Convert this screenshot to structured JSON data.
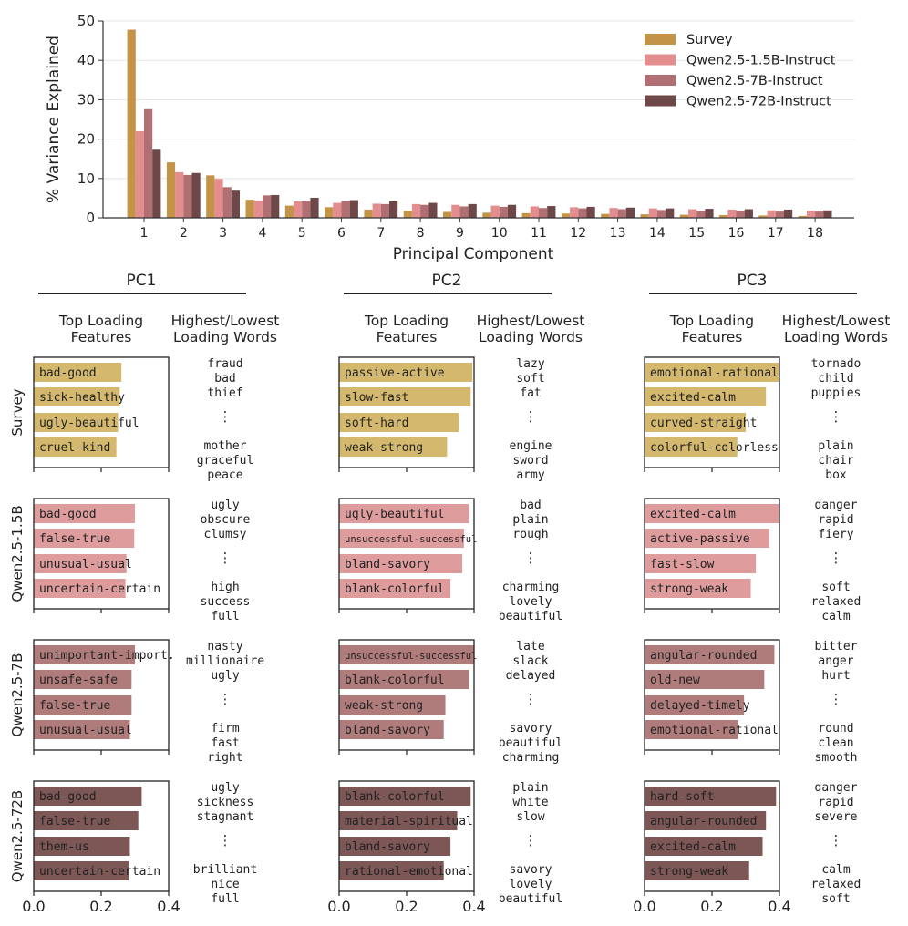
{
  "colors": {
    "survey": "#c39448",
    "q15": "#e38d8f",
    "q7": "#b06f72",
    "q72": "#6e4748",
    "bar_survey": "#d4b86d",
    "bar_q15": "#de9c9d",
    "bar_q7": "#b07b7b",
    "bar_q72": "#7d5656"
  },
  "chart_data": [
    {
      "type": "bar",
      "title": "",
      "xlabel": "Principal Component",
      "ylabel": "% Variance Explained",
      "ylim": [
        0,
        50
      ],
      "yticks": [
        "0",
        "10",
        "20",
        "30",
        "40",
        "50"
      ],
      "categories": [
        "1",
        "2",
        "3",
        "4",
        "5",
        "6",
        "7",
        "8",
        "9",
        "10",
        "11",
        "12",
        "13",
        "14",
        "15",
        "16",
        "17",
        "18"
      ],
      "legend_position": "top-right",
      "grid": "horizontal",
      "series": [
        {
          "name": "Survey",
          "color_key": "survey",
          "values": [
            47.8,
            14.1,
            10.8,
            4.6,
            3.1,
            2.7,
            2.1,
            1.8,
            1.5,
            1.3,
            1.2,
            1.1,
            1.0,
            0.9,
            0.8,
            0.7,
            0.6,
            0.5
          ]
        },
        {
          "name": "Qwen2.5-1.5B-Instruct",
          "color_key": "q15",
          "values": [
            22.0,
            11.6,
            9.9,
            4.4,
            4.2,
            3.8,
            3.6,
            3.5,
            3.3,
            3.1,
            2.9,
            2.7,
            2.5,
            2.4,
            2.2,
            2.1,
            1.9,
            1.8
          ]
        },
        {
          "name": "Qwen2.5-7B-Instruct",
          "color_key": "q7",
          "values": [
            27.6,
            10.9,
            7.8,
            5.7,
            4.3,
            4.3,
            3.5,
            3.3,
            2.9,
            2.8,
            2.5,
            2.4,
            2.2,
            2.0,
            1.8,
            1.8,
            1.6,
            1.6
          ]
        },
        {
          "name": "Qwen2.5-72B-Instruct",
          "color_key": "q72",
          "values": [
            17.3,
            11.4,
            6.9,
            5.8,
            5.1,
            4.5,
            4.2,
            3.8,
            3.5,
            3.3,
            3.0,
            2.8,
            2.6,
            2.4,
            2.3,
            2.2,
            2.1,
            1.9
          ]
        }
      ]
    },
    {
      "type": "bar",
      "orientation": "horizontal",
      "xlim": [
        0,
        0.4
      ],
      "xticks": [
        "0.0",
        "0.2",
        "0.4"
      ],
      "column_headers": {
        "features": "Top Loading Features",
        "words": "Highest/Lowest Loading Words"
      },
      "row_labels": [
        "Survey",
        "Qwen2.5-1.5B",
        "Qwen2.5-7B",
        "Qwen2.5-72B"
      ],
      "row_color_keys": [
        "bar_survey",
        "bar_q15",
        "bar_q7",
        "bar_q72"
      ],
      "ellipsis": "⋮",
      "pcs": [
        {
          "title": "PC1",
          "rows": [
            {
              "features": [
                {
                  "label": "bad-good",
                  "value": 0.26
                },
                {
                  "label": "sick-healthy",
                  "value": 0.255
                },
                {
                  "label": "ugly-beautiful",
                  "value": 0.25
                },
                {
                  "label": "cruel-kind",
                  "value": 0.245
                }
              ],
              "high_words": [
                "fraud",
                "bad",
                "thief"
              ],
              "low_words": [
                "mother",
                "graceful",
                "peace"
              ]
            },
            {
              "features": [
                {
                  "label": "bad-good",
                  "value": 0.3
                },
                {
                  "label": "false-true",
                  "value": 0.298
                },
                {
                  "label": "unusual-usual",
                  "value": 0.275
                },
                {
                  "label": "uncertain-certain",
                  "value": 0.272
                }
              ],
              "high_words": [
                "ugly",
                "obscure",
                "clumsy"
              ],
              "low_words": [
                "high",
                "success",
                "full"
              ]
            },
            {
              "features": [
                {
                  "label": "unimportant-import.",
                  "value": 0.3
                },
                {
                  "label": "unsafe-safe",
                  "value": 0.29
                },
                {
                  "label": "false-true",
                  "value": 0.29
                },
                {
                  "label": "unusual-usual",
                  "value": 0.285
                }
              ],
              "high_words": [
                "nasty",
                "millionaire",
                "ugly"
              ],
              "low_words": [
                "firm",
                "fast",
                "right"
              ]
            },
            {
              "features": [
                {
                  "label": "bad-good",
                  "value": 0.32
                },
                {
                  "label": "false-true",
                  "value": 0.31
                },
                {
                  "label": "them-us",
                  "value": 0.285
                },
                {
                  "label": "uncertain-certain",
                  "value": 0.282
                }
              ],
              "high_words": [
                "ugly",
                "sickness",
                "stagnant"
              ],
              "low_words": [
                "brilliant",
                "nice",
                "full"
              ]
            }
          ]
        },
        {
          "title": "PC2",
          "rows": [
            {
              "features": [
                {
                  "label": "passive-active",
                  "value": 0.395
                },
                {
                  "label": "slow-fast",
                  "value": 0.39
                },
                {
                  "label": "soft-hard",
                  "value": 0.355
                },
                {
                  "label": "weak-strong",
                  "value": 0.32
                }
              ],
              "high_words": [
                "lazy",
                "soft",
                "fat"
              ],
              "low_words": [
                "engine",
                "sword",
                "army"
              ]
            },
            {
              "features": [
                {
                  "label": "ugly-beautiful",
                  "value": 0.385
                },
                {
                  "label": "unsuccessful-successful",
                  "value": 0.37
                },
                {
                  "label": "bland-savory",
                  "value": 0.365
                },
                {
                  "label": "blank-colorful",
                  "value": 0.33
                }
              ],
              "high_words": [
                "bad",
                "plain",
                "rough"
              ],
              "low_words": [
                "charming",
                "lovely",
                "beautiful"
              ]
            },
            {
              "features": [
                {
                  "label": "unsuccessful-successful",
                  "value": 0.4
                },
                {
                  "label": "blank-colorful",
                  "value": 0.385
                },
                {
                  "label": "weak-strong",
                  "value": 0.315
                },
                {
                  "label": "bland-savory",
                  "value": 0.31
                }
              ],
              "high_words": [
                "late",
                "slack",
                "delayed"
              ],
              "low_words": [
                "savory",
                "beautiful",
                "charming"
              ]
            },
            {
              "features": [
                {
                  "label": "blank-colorful",
                  "value": 0.39
                },
                {
                  "label": "material-spiritual",
                  "value": 0.35
                },
                {
                  "label": "bland-savory",
                  "value": 0.33
                },
                {
                  "label": "rational-emotional",
                  "value": 0.31
                }
              ],
              "high_words": [
                "plain",
                "white",
                "slow"
              ],
              "low_words": [
                "savory",
                "lovely",
                "beautiful"
              ]
            }
          ]
        },
        {
          "title": "PC3",
          "rows": [
            {
              "features": [
                {
                  "label": "emotional-rational",
                  "value": 0.4
                },
                {
                  "label": "excited-calm",
                  "value": 0.36
                },
                {
                  "label": "curved-straight",
                  "value": 0.3
                },
                {
                  "label": "colorful-colorless",
                  "value": 0.275
                }
              ],
              "high_words": [
                "tornado",
                "child",
                "puppies"
              ],
              "low_words": [
                "plain",
                "chair",
                "box"
              ]
            },
            {
              "features": [
                {
                  "label": "excited-calm",
                  "value": 0.4
                },
                {
                  "label": "active-passive",
                  "value": 0.37
                },
                {
                  "label": "fast-slow",
                  "value": 0.33
                },
                {
                  "label": "strong-weak",
                  "value": 0.315
                }
              ],
              "high_words": [
                "danger",
                "rapid",
                "fiery"
              ],
              "low_words": [
                "soft",
                "relaxed",
                "calm"
              ]
            },
            {
              "features": [
                {
                  "label": "angular-rounded",
                  "value": 0.385
                },
                {
                  "label": "old-new",
                  "value": 0.355
                },
                {
                  "label": "delayed-timely",
                  "value": 0.295
                },
                {
                  "label": "emotional-rational",
                  "value": 0.277
                }
              ],
              "high_words": [
                "bitter",
                "anger",
                "hurt"
              ],
              "low_words": [
                "round",
                "clean",
                "smooth"
              ]
            },
            {
              "features": [
                {
                  "label": "hard-soft",
                  "value": 0.39
                },
                {
                  "label": "angular-rounded",
                  "value": 0.36
                },
                {
                  "label": "excited-calm",
                  "value": 0.35
                },
                {
                  "label": "strong-weak",
                  "value": 0.31
                }
              ],
              "high_words": [
                "danger",
                "rapid",
                "severe"
              ],
              "low_words": [
                "calm",
                "relaxed",
                "soft"
              ]
            }
          ]
        }
      ]
    }
  ]
}
